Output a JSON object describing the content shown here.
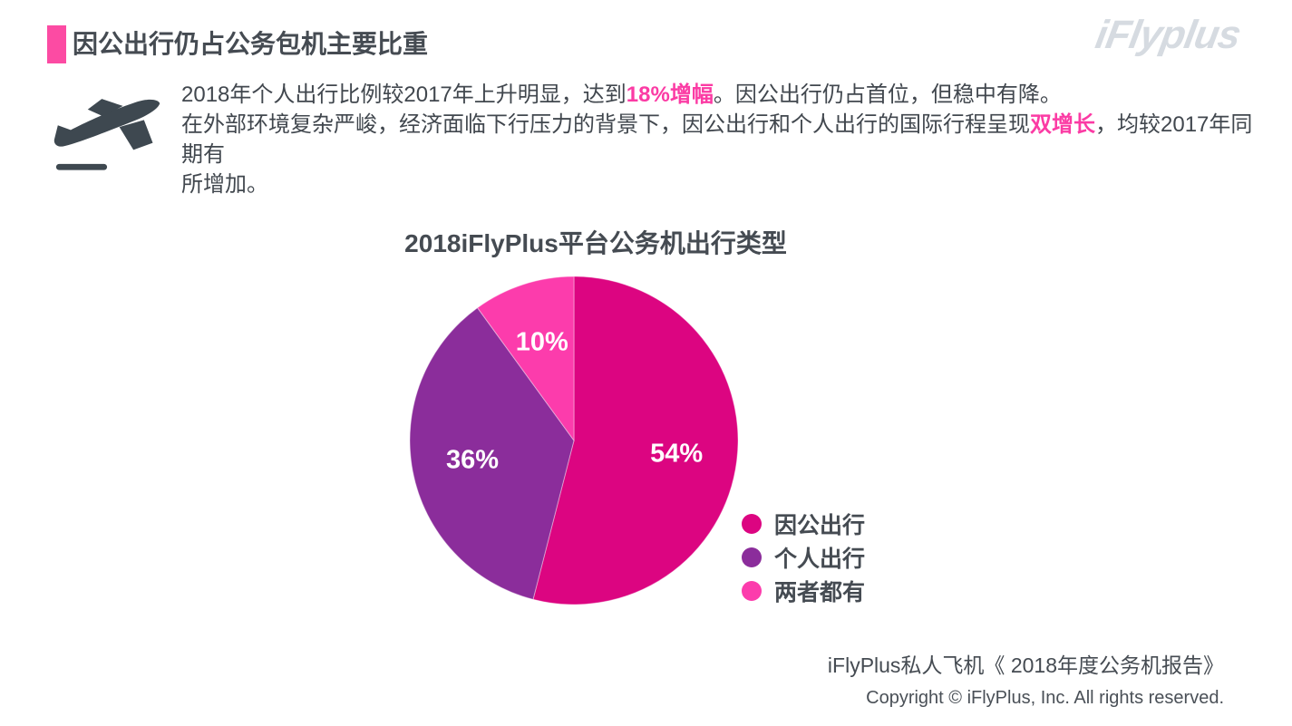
{
  "header": {
    "title": "因公出行仍占公务包机主要比重",
    "logo_text": "iFlyplus"
  },
  "icons": {
    "plane_departure_icon": "svg plane-departure silhouette with ground line",
    "title_accent_icon": "pink rectangle bar"
  },
  "intro": {
    "segments": [
      {
        "text": "2018年个人出行比例较2017年上升明显，达到",
        "highlight": false
      },
      {
        "text": "18%增幅",
        "highlight": true
      },
      {
        "text": "。因公出行仍占首位，但稳中有降。",
        "highlight": false
      },
      {
        "text": "在外部环境复杂严峻，经济面临下行压力的背景下，因公出行和个人出行的国际行程呈现",
        "highlight": false,
        "br_before": true
      },
      {
        "text": "双增长",
        "highlight": true
      },
      {
        "text": "，均较2017年同期有",
        "highlight": false
      },
      {
        "text": "所增加。",
        "highlight": false,
        "br_before": true
      }
    ]
  },
  "chart_data": {
    "type": "pie",
    "title": "2018iFlyPlus平台公务机出行类型",
    "categories": [
      "因公出行",
      "个人出行",
      "两者都有"
    ],
    "values": [
      54,
      36,
      10
    ],
    "value_labels": [
      "54%",
      "36%",
      "10%"
    ],
    "colors": [
      "#DC0581",
      "#8B2D9B",
      "#FC3CAC"
    ],
    "start_angle_deg": 0,
    "direction": "clockwise",
    "legend_position": "right",
    "label_color": "#FFFFFF"
  },
  "footer": {
    "source_line": "iFlyPlus私人飞机《 2018年度公务机报告》",
    "copyright_line": "Copyright © iFlyPlus, Inc. All rights reserved."
  },
  "palette": {
    "accent_pink": "#FC4BA3",
    "highlight_pink": "#FB3BA4",
    "dark_text": "#454B52",
    "logo_gray": "#D6DBE1",
    "icon_dark": "#3E4850"
  }
}
